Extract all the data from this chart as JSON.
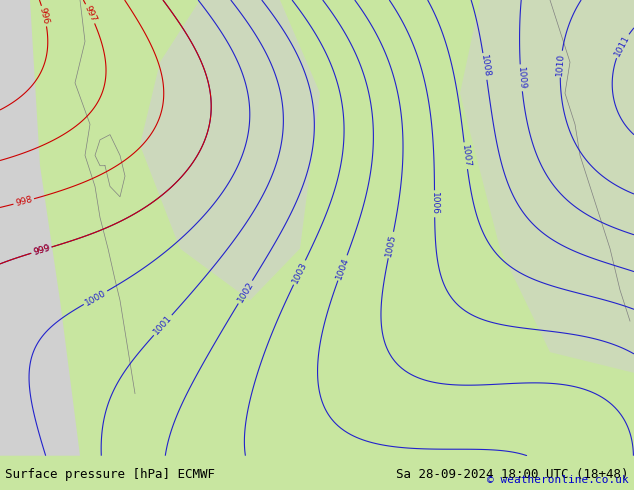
{
  "title_left": "Surface pressure [hPa] ECMWF",
  "title_right": "Sa 28-09-2024 18:00 UTC (18+48)",
  "copyright": "© weatheronline.co.uk",
  "bg_color": "#c8e6a0",
  "land_color": "#c8e6a0",
  "water_color": "#c8e6a0",
  "text_color_black": "#000000",
  "text_color_blue": "#0000cc",
  "text_color_red": "#cc0000",
  "bottom_bar_color": "#ffffff",
  "figsize": [
    6.34,
    4.9
  ],
  "dpi": 100
}
